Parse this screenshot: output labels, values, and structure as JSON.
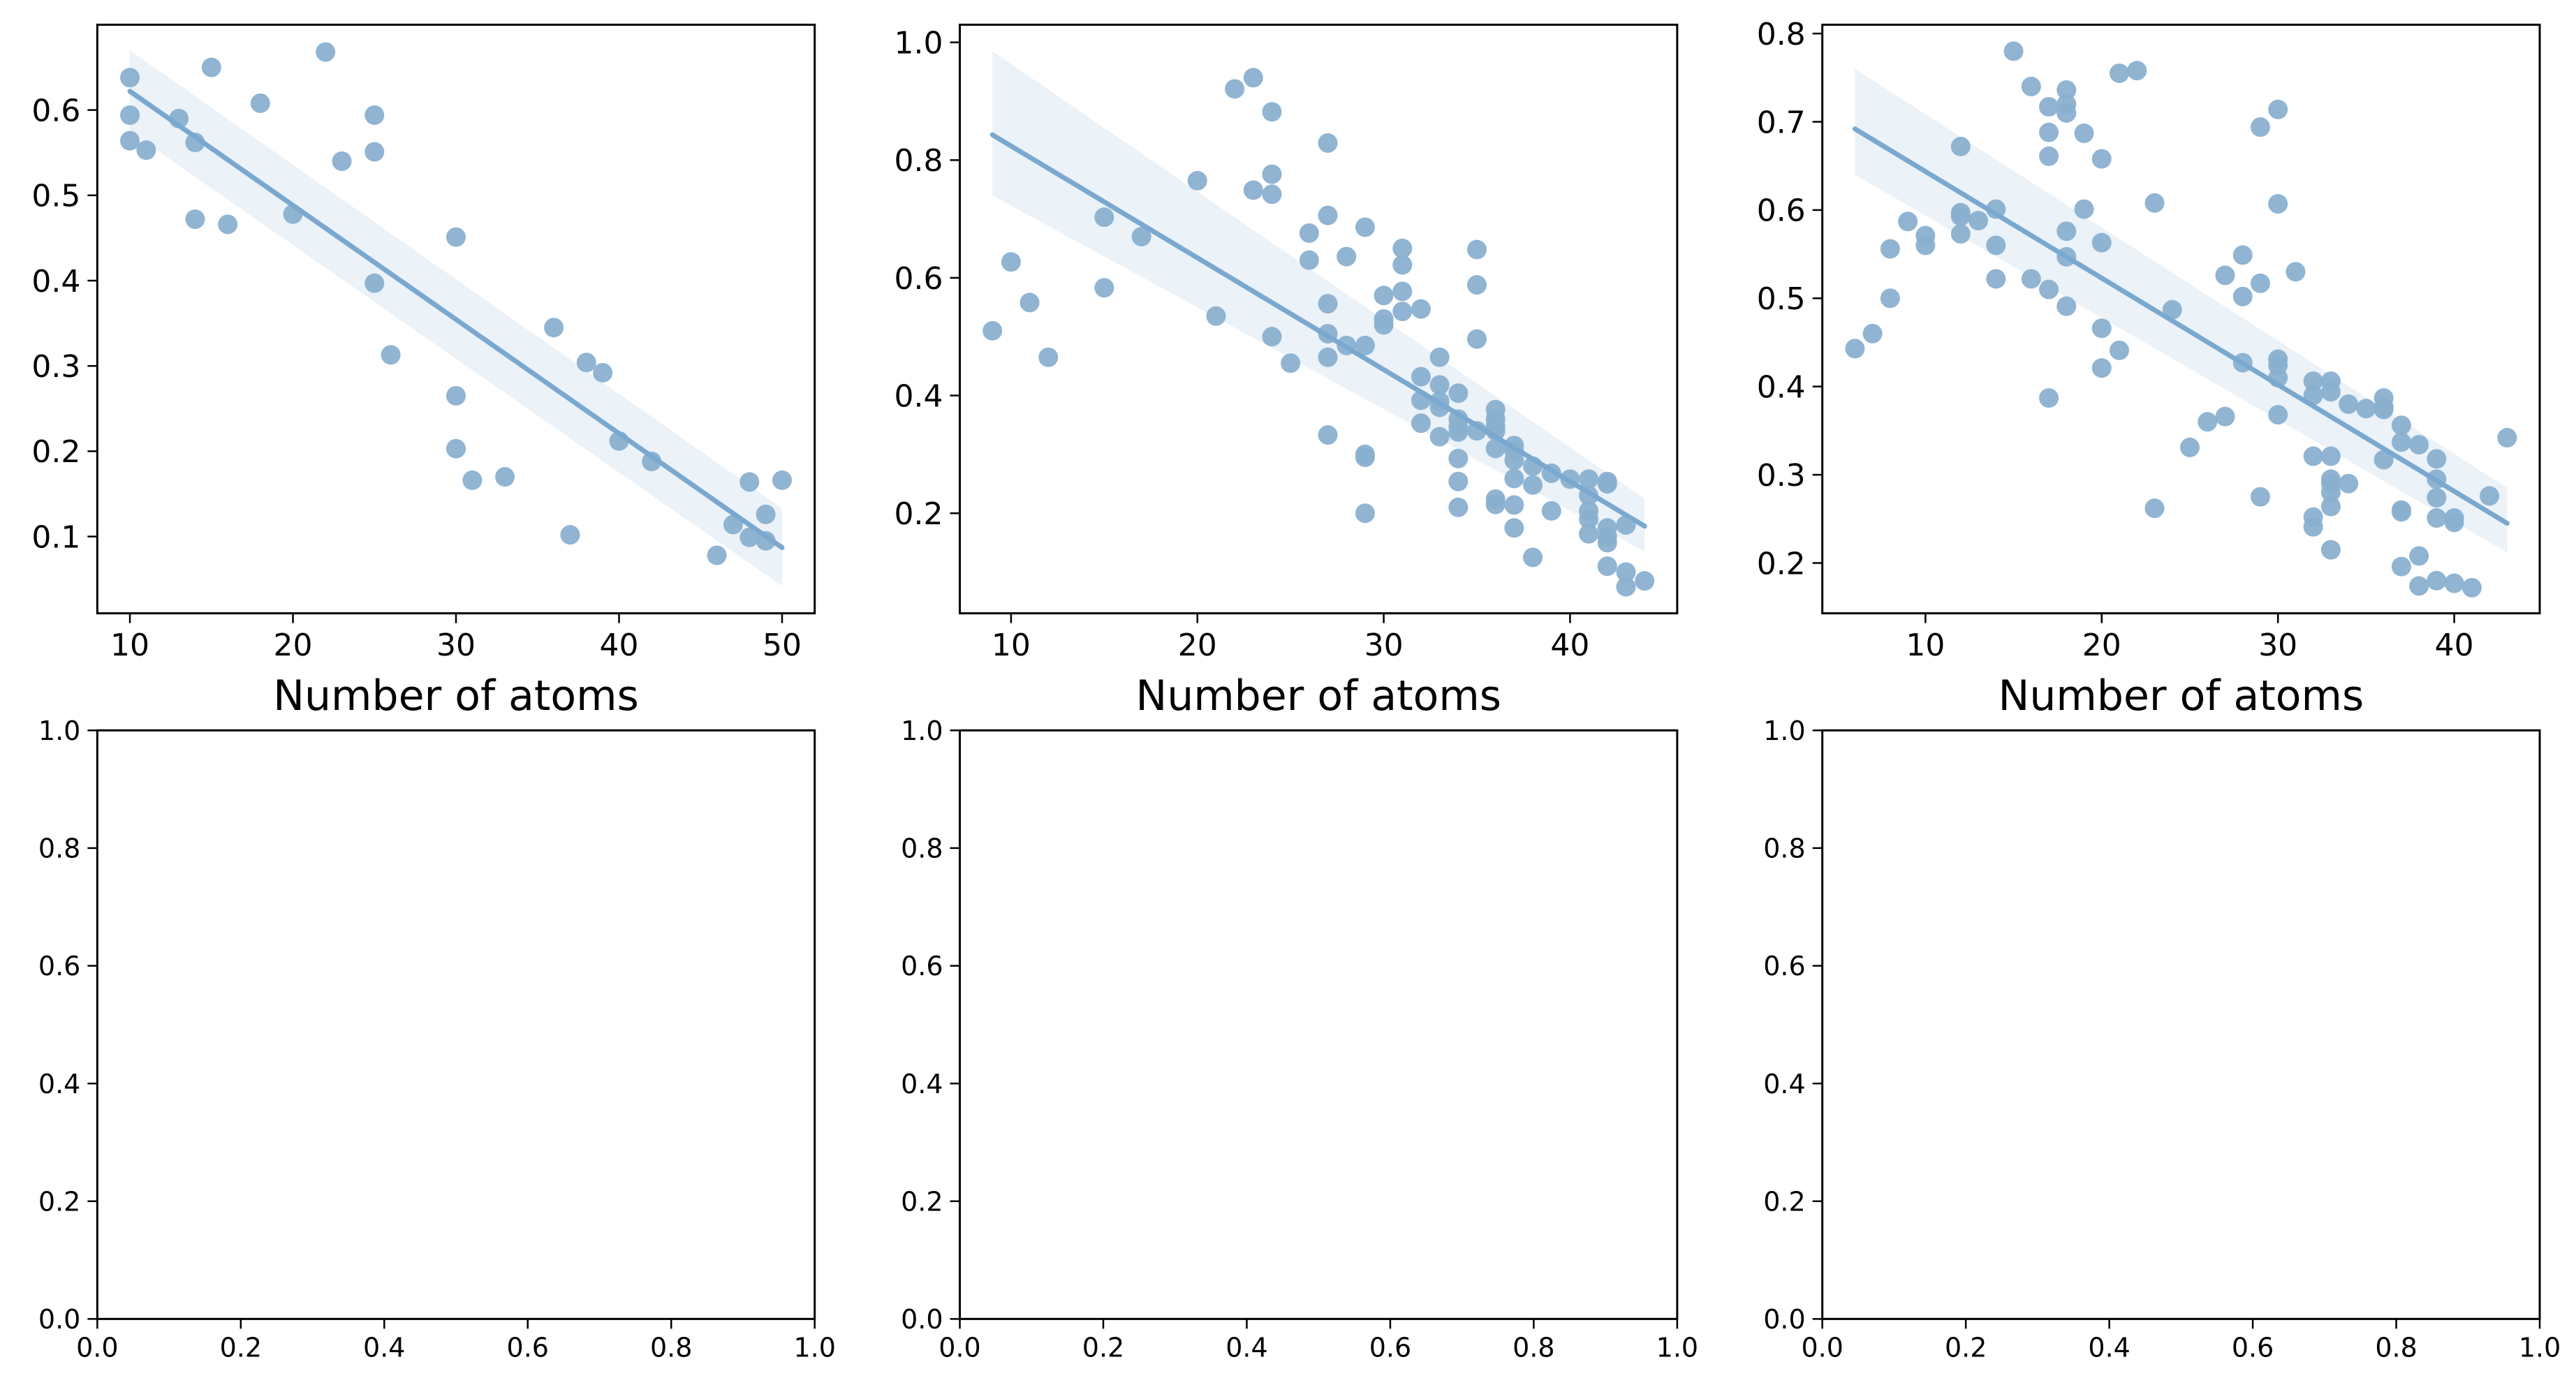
{
  "colors": {
    "point": "#8ab0d0",
    "line": "#7aa8cf",
    "band": "#dbe7f3"
  },
  "chart_data": [
    {
      "type": "scatter",
      "xlabel": "Number of atoms",
      "xlim": [
        8,
        52
      ],
      "ylim": [
        0.01,
        0.7
      ],
      "xticks": [
        "10",
        "20",
        "30",
        "40",
        "50"
      ],
      "yticks": [
        "0.1",
        "0.2",
        "0.3",
        "0.4",
        "0.5",
        "0.6"
      ],
      "points": [
        [
          10,
          0.638
        ],
        [
          10,
          0.594
        ],
        [
          10,
          0.564
        ],
        [
          11,
          0.553
        ],
        [
          13,
          0.59
        ],
        [
          14,
          0.562
        ],
        [
          14,
          0.472
        ],
        [
          15,
          0.65
        ],
        [
          16,
          0.466
        ],
        [
          18,
          0.608
        ],
        [
          20,
          0.478
        ],
        [
          22,
          0.668
        ],
        [
          23,
          0.54
        ],
        [
          25,
          0.594
        ],
        [
          25,
          0.551
        ],
        [
          25,
          0.397
        ],
        [
          26,
          0.313
        ],
        [
          30,
          0.451
        ],
        [
          30,
          0.265
        ],
        [
          30,
          0.203
        ],
        [
          31,
          0.166
        ],
        [
          33,
          0.17
        ],
        [
          36,
          0.345
        ],
        [
          37,
          0.102
        ],
        [
          38,
          0.304
        ],
        [
          39,
          0.292
        ],
        [
          40,
          0.212
        ],
        [
          42,
          0.188
        ],
        [
          46,
          0.078
        ],
        [
          47,
          0.114
        ],
        [
          48,
          0.164
        ],
        [
          48,
          0.099
        ],
        [
          49,
          0.126
        ],
        [
          49,
          0.095
        ],
        [
          50,
          0.166
        ]
      ],
      "regression": {
        "x": [
          10,
          50
        ],
        "y": [
          0.622,
          0.087
        ],
        "ci_lower": [
          0.575,
          0.042
        ],
        "ci_upper": [
          0.67,
          0.133
        ]
      }
    },
    {
      "type": "scatter",
      "xlabel": "Number of atoms",
      "xlim": [
        7.25,
        45.75
      ],
      "ylim": [
        0.03,
        1.03
      ],
      "xticks": [
        "10",
        "20",
        "30",
        "40"
      ],
      "yticks": [
        "0.2",
        "0.4",
        "0.6",
        "0.8",
        "1.0"
      ],
      "points": [
        [
          9,
          0.51
        ],
        [
          10,
          0.627
        ],
        [
          11,
          0.558
        ],
        [
          12,
          0.465
        ],
        [
          15,
          0.703
        ],
        [
          15,
          0.583
        ],
        [
          17,
          0.67
        ],
        [
          20,
          0.765
        ],
        [
          21,
          0.535
        ],
        [
          22,
          0.921
        ],
        [
          23,
          0.94
        ],
        [
          23,
          0.749
        ],
        [
          24,
          0.882
        ],
        [
          24,
          0.776
        ],
        [
          24,
          0.742
        ],
        [
          24,
          0.5
        ],
        [
          25,
          0.455
        ],
        [
          26,
          0.676
        ],
        [
          26,
          0.63
        ],
        [
          27,
          0.829
        ],
        [
          27,
          0.706
        ],
        [
          27,
          0.556
        ],
        [
          27,
          0.505
        ],
        [
          27,
          0.465
        ],
        [
          27,
          0.333
        ],
        [
          28,
          0.636
        ],
        [
          28,
          0.485
        ],
        [
          29,
          0.686
        ],
        [
          29,
          0.485
        ],
        [
          29,
          0.3
        ],
        [
          29,
          0.295
        ],
        [
          29,
          0.2
        ],
        [
          30,
          0.57
        ],
        [
          30,
          0.53
        ],
        [
          30,
          0.52
        ],
        [
          31,
          0.65
        ],
        [
          31,
          0.622
        ],
        [
          31,
          0.577
        ],
        [
          31,
          0.543
        ],
        [
          32,
          0.547
        ],
        [
          32,
          0.432
        ],
        [
          32,
          0.392
        ],
        [
          32,
          0.353
        ],
        [
          33,
          0.465
        ],
        [
          33,
          0.418
        ],
        [
          33,
          0.39
        ],
        [
          33,
          0.38
        ],
        [
          33,
          0.33
        ],
        [
          34,
          0.404
        ],
        [
          34,
          0.36
        ],
        [
          34,
          0.347
        ],
        [
          34,
          0.338
        ],
        [
          34,
          0.293
        ],
        [
          34,
          0.254
        ],
        [
          34,
          0.21
        ],
        [
          35,
          0.648
        ],
        [
          35,
          0.588
        ],
        [
          35,
          0.496
        ],
        [
          35,
          0.34
        ],
        [
          36,
          0.376
        ],
        [
          36,
          0.36
        ],
        [
          36,
          0.348
        ],
        [
          36,
          0.34
        ],
        [
          36,
          0.31
        ],
        [
          36,
          0.224
        ],
        [
          36,
          0.215
        ],
        [
          37,
          0.315
        ],
        [
          37,
          0.306
        ],
        [
          37,
          0.29
        ],
        [
          37,
          0.259
        ],
        [
          37,
          0.214
        ],
        [
          37,
          0.175
        ],
        [
          38,
          0.28
        ],
        [
          38,
          0.248
        ],
        [
          38,
          0.125
        ],
        [
          39,
          0.268
        ],
        [
          39,
          0.204
        ],
        [
          40,
          0.258
        ],
        [
          41,
          0.258
        ],
        [
          41,
          0.23
        ],
        [
          41,
          0.204
        ],
        [
          41,
          0.19
        ],
        [
          41,
          0.165
        ],
        [
          42,
          0.254
        ],
        [
          42,
          0.25
        ],
        [
          42,
          0.175
        ],
        [
          42,
          0.16
        ],
        [
          42,
          0.15
        ],
        [
          42,
          0.11
        ],
        [
          43,
          0.18
        ],
        [
          43,
          0.1
        ],
        [
          43,
          0.075
        ],
        [
          44,
          0.085
        ]
      ],
      "regression": {
        "x": [
          9,
          44
        ],
        "y": [
          0.843,
          0.178
        ],
        "ci_lower": [
          0.74,
          0.135
        ],
        "ci_upper": [
          0.985,
          0.225
        ]
      }
    },
    {
      "type": "scatter",
      "xlabel": "Number of atoms",
      "xlim": [
        4.15,
        44.85
      ],
      "ylim": [
        0.143,
        0.81
      ],
      "xticks": [
        "10",
        "20",
        "30",
        "40"
      ],
      "yticks": [
        "0.2",
        "0.3",
        "0.4",
        "0.5",
        "0.6",
        "0.7",
        "0.8"
      ],
      "points": [
        [
          6,
          0.443
        ],
        [
          7,
          0.46
        ],
        [
          8,
          0.556
        ],
        [
          8,
          0.5
        ],
        [
          9,
          0.587
        ],
        [
          10,
          0.571
        ],
        [
          10,
          0.56
        ],
        [
          12,
          0.672
        ],
        [
          12,
          0.597
        ],
        [
          12,
          0.593
        ],
        [
          12,
          0.573
        ],
        [
          13,
          0.588
        ],
        [
          14,
          0.601
        ],
        [
          14,
          0.56
        ],
        [
          14,
          0.522
        ],
        [
          15,
          0.78
        ],
        [
          16,
          0.74
        ],
        [
          16,
          0.522
        ],
        [
          17,
          0.717
        ],
        [
          17,
          0.688
        ],
        [
          17,
          0.661
        ],
        [
          17,
          0.51
        ],
        [
          17,
          0.387
        ],
        [
          18,
          0.736
        ],
        [
          18,
          0.72
        ],
        [
          18,
          0.71
        ],
        [
          18,
          0.576
        ],
        [
          18,
          0.547
        ],
        [
          18,
          0.491
        ],
        [
          19,
          0.687
        ],
        [
          19,
          0.601
        ],
        [
          20,
          0.658
        ],
        [
          20,
          0.563
        ],
        [
          20,
          0.466
        ],
        [
          20,
          0.421
        ],
        [
          21,
          0.755
        ],
        [
          21,
          0.441
        ],
        [
          22,
          0.758
        ],
        [
          23,
          0.608
        ],
        [
          23,
          0.262
        ],
        [
          24,
          0.487
        ],
        [
          25,
          0.331
        ],
        [
          26,
          0.36
        ],
        [
          27,
          0.526
        ],
        [
          27,
          0.366
        ],
        [
          28,
          0.549
        ],
        [
          28,
          0.502
        ],
        [
          28,
          0.427
        ],
        [
          29,
          0.694
        ],
        [
          29,
          0.517
        ],
        [
          29,
          0.275
        ],
        [
          30,
          0.714
        ],
        [
          30,
          0.607
        ],
        [
          30,
          0.431
        ],
        [
          30,
          0.424
        ],
        [
          30,
          0.41
        ],
        [
          30,
          0.368
        ],
        [
          31,
          0.53
        ],
        [
          32,
          0.406
        ],
        [
          32,
          0.39
        ],
        [
          32,
          0.321
        ],
        [
          32,
          0.252
        ],
        [
          32,
          0.241
        ],
        [
          33,
          0.406
        ],
        [
          33,
          0.394
        ],
        [
          33,
          0.321
        ],
        [
          33,
          0.295
        ],
        [
          33,
          0.29
        ],
        [
          33,
          0.28
        ],
        [
          33,
          0.264
        ],
        [
          33,
          0.215
        ],
        [
          34,
          0.38
        ],
        [
          34,
          0.29
        ],
        [
          35,
          0.375
        ],
        [
          36,
          0.387
        ],
        [
          36,
          0.377
        ],
        [
          36,
          0.374
        ],
        [
          36,
          0.317
        ],
        [
          37,
          0.356
        ],
        [
          37,
          0.337
        ],
        [
          37,
          0.26
        ],
        [
          37,
          0.258
        ],
        [
          37,
          0.196
        ],
        [
          38,
          0.334
        ],
        [
          38,
          0.208
        ],
        [
          38,
          0.174
        ],
        [
          39,
          0.318
        ],
        [
          39,
          0.295
        ],
        [
          39,
          0.274
        ],
        [
          39,
          0.251
        ],
        [
          39,
          0.18
        ],
        [
          40,
          0.251
        ],
        [
          40,
          0.246
        ],
        [
          40,
          0.177
        ],
        [
          41,
          0.172
        ],
        [
          42,
          0.276
        ],
        [
          43,
          0.342
        ]
      ],
      "regression": {
        "x": [
          6,
          43
        ],
        "y": [
          0.692,
          0.245
        ],
        "ci_lower": [
          0.64,
          0.212
        ],
        "ci_upper": [
          0.76,
          0.285
        ]
      }
    },
    {
      "type": "scatter",
      "xlabel": "",
      "xlim": [
        0,
        1
      ],
      "ylim": [
        0,
        1
      ],
      "xticks": [
        "0.0",
        "0.2",
        "0.4",
        "0.6",
        "0.8",
        "1.0"
      ],
      "yticks": [
        "0.0",
        "0.2",
        "0.4",
        "0.6",
        "0.8",
        "1.0"
      ],
      "points": []
    },
    {
      "type": "scatter",
      "xlabel": "",
      "xlim": [
        0,
        1
      ],
      "ylim": [
        0,
        1
      ],
      "xticks": [
        "0.0",
        "0.2",
        "0.4",
        "0.6",
        "0.8",
        "1.0"
      ],
      "yticks": [
        "0.0",
        "0.2",
        "0.4",
        "0.6",
        "0.8",
        "1.0"
      ],
      "points": []
    },
    {
      "type": "scatter",
      "xlabel": "",
      "xlim": [
        0,
        1
      ],
      "ylim": [
        0,
        1
      ],
      "xticks": [
        "0.0",
        "0.2",
        "0.4",
        "0.6",
        "0.8",
        "1.0"
      ],
      "yticks": [
        "0.0",
        "0.2",
        "0.4",
        "0.6",
        "0.8",
        "1.0"
      ],
      "points": []
    }
  ]
}
